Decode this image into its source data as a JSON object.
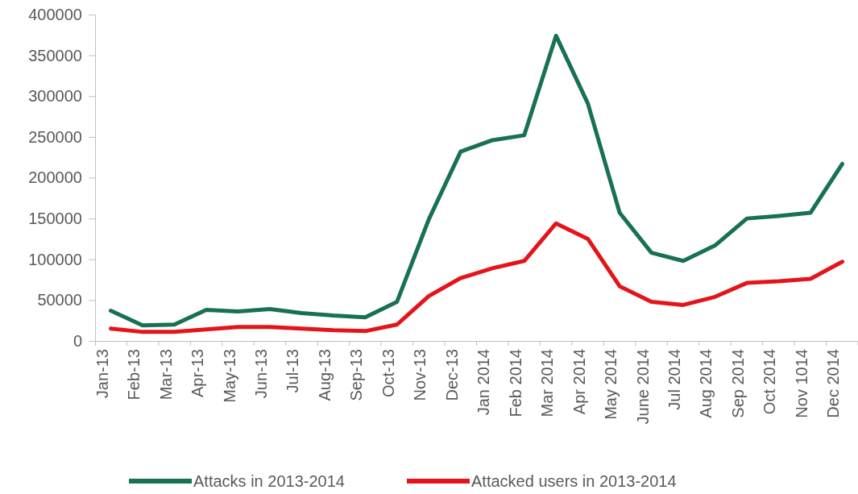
{
  "chart_data": {
    "type": "line",
    "categories": [
      "Jan-13",
      "Feb-13",
      "Mar-13",
      "Apr-13",
      "May-13",
      "Jun-13",
      "Jul-13",
      "Aug-13",
      "Sep-13",
      "Oct-13",
      "Nov-13",
      "Dec-13",
      "Jan 2014",
      "Feb 2014",
      "Mar 2014",
      "Apr 2014",
      "May 2014",
      "June 2014",
      "Jul 2014",
      "Aug 2014",
      "Sep 2014",
      "Oct 2014",
      "Nov 1014",
      "Dec 2014"
    ],
    "series": [
      {
        "name": "Attacks in 2013-2014",
        "color": "#177152",
        "values": [
          37000,
          19000,
          20000,
          38000,
          36000,
          39000,
          34000,
          31000,
          29000,
          48000,
          149000,
          232000,
          246000,
          252000,
          374000,
          291000,
          157000,
          108000,
          98000,
          117000,
          150000,
          153000,
          157000,
          217000
        ]
      },
      {
        "name": "Attacked users in 2013-2014",
        "color": "#e3151b",
        "values": [
          15000,
          11000,
          11000,
          14000,
          17000,
          17000,
          15000,
          13000,
          12000,
          20000,
          55000,
          77000,
          89000,
          98000,
          144000,
          125000,
          67000,
          48000,
          44000,
          54000,
          71000,
          73000,
          76000,
          97000
        ]
      }
    ],
    "ylim": [
      0,
      400000
    ],
    "yticks": [
      0,
      50000,
      100000,
      150000,
      200000,
      250000,
      300000,
      350000,
      400000
    ],
    "grid": false,
    "legend": "bottom",
    "marker": "none",
    "line_style": "solid"
  }
}
